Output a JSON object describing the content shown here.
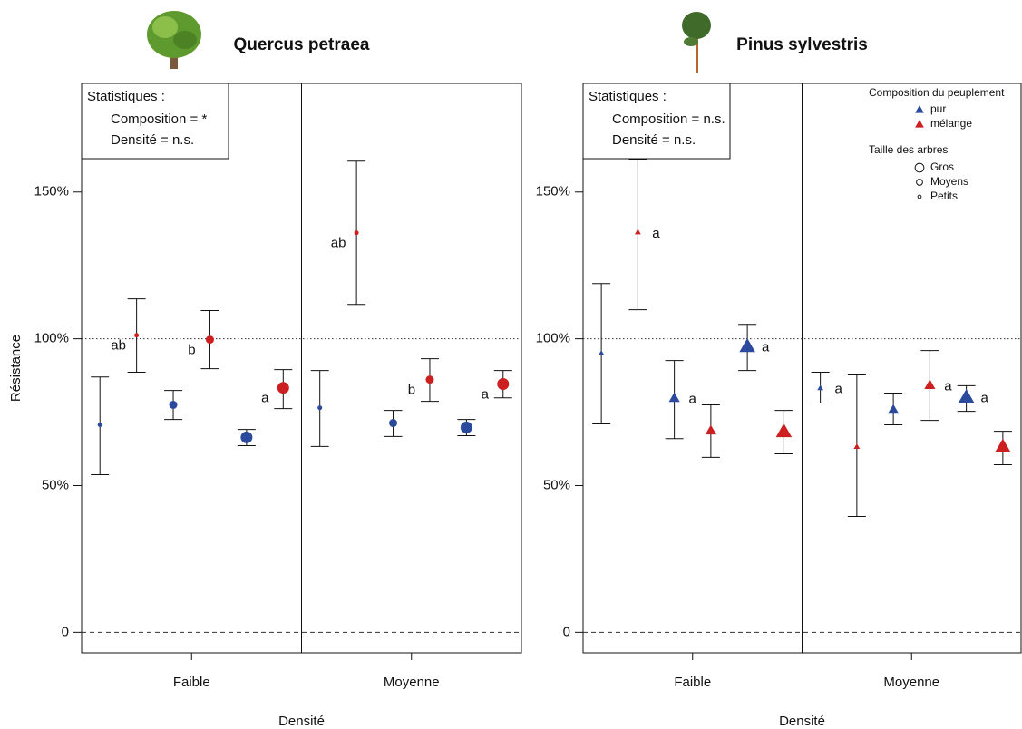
{
  "chart_data": [
    {
      "type": "errorbar",
      "title": "Quercus petraea",
      "marker": "circle",
      "ylabel": "Résistance",
      "xlabel": "Densité",
      "categories": [
        "Faible",
        "Moyenne"
      ],
      "ylim": [
        -7,
        187
      ],
      "yticks": [
        {
          "value": 0,
          "label": "0"
        },
        {
          "value": 50,
          "label": "50%"
        },
        {
          "value": 100,
          "label": "100%"
        },
        {
          "value": 150,
          "label": "150%"
        }
      ],
      "reference_lines": [
        {
          "value": 0,
          "style": "dashed"
        },
        {
          "value": 100,
          "style": "dotted"
        }
      ],
      "colors": {
        "pur": "#2b4a9e",
        "mélange": "#cc1f1f"
      },
      "stats": {
        "title": "Statistiques :",
        "lines": [
          "Composition = *",
          "Densité = n.s."
        ]
      },
      "series": [
        {
          "composition": "pur",
          "size": "Petits",
          "values": [
            70.7,
            76.5
          ],
          "lower": [
            53.7,
            63.3
          ],
          "upper": [
            87.0,
            89.2
          ],
          "letters": [
            null,
            null
          ]
        },
        {
          "composition": "mélange",
          "size": "Petits",
          "values": [
            101.2,
            136.1
          ],
          "lower": [
            88.6,
            111.7
          ],
          "upper": [
            113.6,
            160.5
          ],
          "letters": [
            "ab",
            "ab"
          ]
        },
        {
          "composition": "pur",
          "size": "Moyens",
          "values": [
            77.5,
            71.3
          ],
          "lower": [
            72.5,
            66.7
          ],
          "upper": [
            82.4,
            75.6
          ],
          "letters": [
            null,
            null
          ]
        },
        {
          "composition": "mélange",
          "size": "Moyens",
          "values": [
            99.7,
            86.1
          ],
          "lower": [
            89.8,
            78.7
          ],
          "upper": [
            109.6,
            93.2
          ],
          "letters": [
            "b",
            "b"
          ]
        },
        {
          "composition": "pur",
          "size": "Gros",
          "values": [
            66.4,
            69.8
          ],
          "lower": [
            63.6,
            67.0
          ],
          "upper": [
            69.1,
            72.5
          ],
          "letters": [
            null,
            null
          ]
        },
        {
          "composition": "mélange",
          "size": "Gros",
          "values": [
            83.3,
            84.6
          ],
          "lower": [
            76.2,
            79.9
          ],
          "upper": [
            89.5,
            89.2
          ],
          "letters": [
            "a",
            "a"
          ]
        }
      ]
    },
    {
      "type": "errorbar",
      "title": "Pinus sylvestris",
      "marker": "triangle",
      "xlabel": "Densité",
      "categories": [
        "Faible",
        "Moyenne"
      ],
      "ylim": [
        -7,
        187
      ],
      "yticks": [
        {
          "value": 0,
          "label": "0"
        },
        {
          "value": 50,
          "label": "50%"
        },
        {
          "value": 100,
          "label": "100%"
        },
        {
          "value": 150,
          "label": "150%"
        }
      ],
      "reference_lines": [
        {
          "value": 0,
          "style": "dashed"
        },
        {
          "value": 100,
          "style": "dotted"
        }
      ],
      "colors": {
        "pur": "#2b4a9e",
        "mélange": "#cc1f1f"
      },
      "stats": {
        "title": "Statistiques :",
        "lines": [
          "Composition = n.s.",
          "Densité = n.s."
        ]
      },
      "legend": {
        "title": "Composition du peuplement",
        "entries": [
          "pur",
          "mélange"
        ],
        "size_title": "Taille des arbres",
        "sizes": [
          "Gros",
          "Moyens",
          "Petits"
        ]
      },
      "series": [
        {
          "composition": "pur",
          "size": "Petits",
          "values": [
            95.1,
            83.3
          ],
          "lower": [
            71.0,
            78.1
          ],
          "upper": [
            118.8,
            88.6
          ],
          "letters": [
            null,
            "a"
          ]
        },
        {
          "composition": "mélange",
          "size": "Petits",
          "values": [
            136.4,
            63.3
          ],
          "lower": [
            109.9,
            39.5
          ],
          "upper": [
            161.1,
            87.7
          ],
          "letters": [
            "a",
            null
          ]
        },
        {
          "composition": "pur",
          "size": "Moyens",
          "values": [
            79.9,
            75.9
          ],
          "lower": [
            66.0,
            70.7
          ],
          "upper": [
            92.6,
            81.5
          ],
          "letters": [
            "a",
            null
          ]
        },
        {
          "composition": "mélange",
          "size": "Moyens",
          "values": [
            68.8,
            84.3
          ],
          "lower": [
            59.6,
            72.2
          ],
          "upper": [
            77.5,
            96.0
          ],
          "letters": [
            null,
            "a"
          ]
        },
        {
          "composition": "pur",
          "size": "Gros",
          "values": [
            97.5,
            80.2
          ],
          "lower": [
            89.2,
            75.3
          ],
          "upper": [
            104.9,
            84.0
          ],
          "letters": [
            "a",
            "a"
          ]
        },
        {
          "composition": "mélange",
          "size": "Gros",
          "values": [
            68.5,
            63.3
          ],
          "lower": [
            60.8,
            57.1
          ],
          "upper": [
            75.6,
            68.5
          ],
          "letters": [
            null,
            null
          ]
        }
      ]
    }
  ]
}
